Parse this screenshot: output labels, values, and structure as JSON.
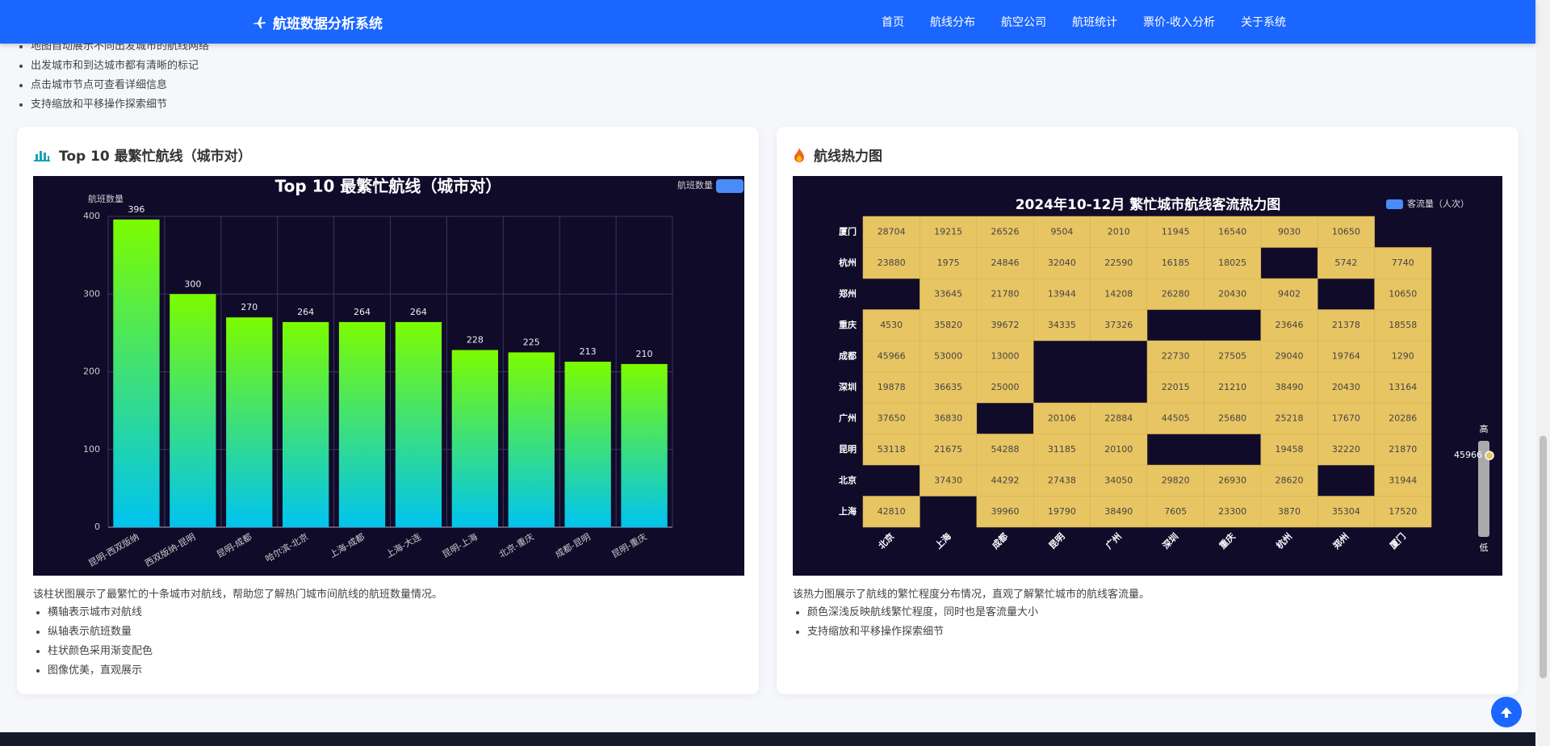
{
  "nav": {
    "brand": "航班数据分析系统",
    "links": [
      "首页",
      "航线分布",
      "航空公司",
      "航班统计",
      "票价-收入分析",
      "关于系统"
    ]
  },
  "intro_list": [
    "地图自动展示不同出发城市的航线网络",
    "出发城市和到达城市都有清晰的标记",
    "点击城市节点可查看详细信息",
    "支持缩放和平移操作探索细节"
  ],
  "panels": [
    {
      "title": "Top 10 最繁忙航线（城市对）",
      "description": "该柱状图展示了最繁忙的十条城市对航线，帮助您了解热门城市间航线的航班数量情况。",
      "bullets": [
        "横轴表示城市对航线",
        "纵轴表示航班数量",
        "柱状颜色采用渐变配色",
        "图像优美，直观展示"
      ]
    },
    {
      "title": "航线热力图",
      "description": "该热力图展示了航线的繁忙程度分布情况，直观了解繁忙城市的航线客流量。",
      "bullets": [
        "颜色深浅反映航线繁忙程度，同时也是客流量大小",
        "支持缩放和平移操作探索细节"
      ]
    }
  ],
  "chart_data": [
    {
      "type": "bar",
      "title": "Top 10 最繁忙航线（城市对）",
      "y_label": "航班数量",
      "categories": [
        "昆明-西双版纳",
        "西双版纳-昆明",
        "昆明-成都",
        "哈尔滨-北京",
        "上海-成都",
        "上海-大连",
        "昆明-上海",
        "北京-重庆",
        "成都-昆明",
        "昆明-重庆"
      ],
      "series": [
        {
          "name": "航班数量",
          "color": "#7cfc00",
          "values": [
            396,
            300,
            270,
            264,
            264,
            264,
            228,
            225,
            213,
            210
          ]
        }
      ],
      "ylim": [
        0,
        400
      ],
      "yticks": [
        0,
        100,
        200,
        300,
        400
      ],
      "grid": true,
      "legend": "top-right"
    },
    {
      "type": "heatmap",
      "title": "2024年10-12月 繁忙城市航线客流热力图",
      "series_name": "客流量（人次）",
      "color": "#e8c563",
      "x_categories": [
        "北京",
        "上海",
        "成都",
        "昆明",
        "广州",
        "深圳",
        "重庆",
        "杭州",
        "郑州",
        "厦门"
      ],
      "y_categories": [
        "上海",
        "北京",
        "昆明",
        "广州",
        "深圳",
        "成都",
        "重庆",
        "郑州",
        "杭州",
        "厦门"
      ],
      "values": [
        [
          42810,
          null,
          39960,
          19790,
          38490,
          7605,
          23300,
          3870,
          35304,
          17520
        ],
        [
          null,
          37430,
          44292,
          27438,
          34050,
          29820,
          26930,
          28620,
          null,
          31944
        ],
        [
          53118,
          21675,
          54288,
          31185,
          20100,
          null,
          null,
          19458,
          32220,
          21870
        ],
        [
          37650,
          36830,
          null,
          20106,
          22884,
          44505,
          25680,
          25218,
          17670,
          20286
        ],
        [
          19878,
          36635,
          25000,
          null,
          null,
          22015,
          21210,
          38490,
          20430,
          13164
        ],
        [
          45966,
          53000,
          13000,
          null,
          null,
          22730,
          27505,
          29040,
          19764,
          1290
        ],
        [
          4530,
          35820,
          39672,
          34335,
          37326,
          null,
          null,
          23646,
          21378,
          18558
        ],
        [
          null,
          33645,
          21780,
          13944,
          14208,
          26280,
          20430,
          9402,
          null,
          10650
        ],
        [
          23880,
          1975,
          24846,
          32040,
          22590,
          16185,
          18025,
          null,
          5742,
          7740
        ],
        [
          28704,
          19215,
          26526,
          9504,
          2010,
          11945,
          16540,
          9030,
          10650,
          null
        ]
      ],
      "visual_map": {
        "high_label": "高",
        "low_label": "低",
        "value": 45966
      }
    }
  ]
}
